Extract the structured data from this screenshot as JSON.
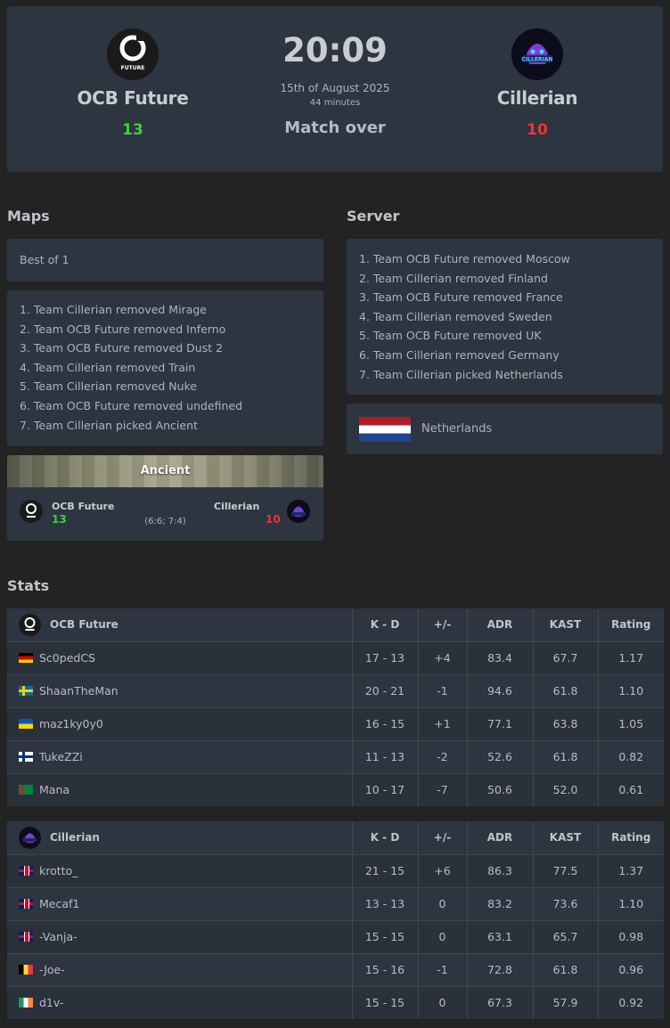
{
  "match": {
    "team1": {
      "name": "OCB Future",
      "score": "13",
      "logo_text": "FUTURE"
    },
    "team2": {
      "name": "Cillerian",
      "score": "10",
      "logo_text": "CILLERIAN"
    },
    "time": "20:09",
    "date": "15th of August 2025",
    "duration": "44 minutes",
    "status": "Match over"
  },
  "maps": {
    "title": "Maps",
    "format": "Best of 1",
    "veto": [
      "1. Team Cillerian removed Mirage",
      "2. Team OCB Future removed Inferno",
      "3. Team OCB Future removed Dust 2",
      "4. Team Cillerian removed Train",
      "5. Team Cillerian removed Nuke",
      "6. Team OCB Future removed undefined",
      "7. Team Cillerian picked Ancient"
    ],
    "played": {
      "name": "Ancient",
      "team1": "OCB Future",
      "team1_score": "13",
      "team2": "Cillerian",
      "team2_score": "10",
      "halves": "(6:6; 7:4)"
    }
  },
  "server": {
    "title": "Server",
    "veto": [
      "1. Team OCB Future removed Moscow",
      "2. Team Cillerian removed Finland",
      "3. Team OCB Future removed France",
      "4. Team Cillerian removed Sweden",
      "5. Team OCB Future removed UK",
      "6. Team Cillerian removed Germany",
      "7. Team Cillerian picked Netherlands"
    ],
    "selected": "Netherlands"
  },
  "stats": {
    "title": "Stats",
    "columns": [
      "K - D",
      "+/-",
      "ADR",
      "KAST",
      "Rating"
    ],
    "team1": {
      "name": "OCB Future",
      "players": [
        {
          "flag": "de",
          "name": "Sc0pedCS",
          "kd": "17 - 13",
          "pm": "+4",
          "adr": "83.4",
          "kast": "67.7",
          "rating": "1.17"
        },
        {
          "flag": "se",
          "name": "ShaanTheMan",
          "kd": "20 - 21",
          "pm": "-1",
          "adr": "94.6",
          "kast": "61.8",
          "rating": "1.10"
        },
        {
          "flag": "ua",
          "name": "maz1ky0y0",
          "kd": "16 - 15",
          "pm": "+1",
          "adr": "77.1",
          "kast": "63.8",
          "rating": "1.05"
        },
        {
          "flag": "fi",
          "name": "TukeZZi",
          "kd": "11 - 13",
          "pm": "-2",
          "adr": "52.6",
          "kast": "61.8",
          "rating": "0.82"
        },
        {
          "flag": "tm",
          "name": "Mana",
          "kd": "10 - 17",
          "pm": "-7",
          "adr": "50.6",
          "kast": "52.0",
          "rating": "0.61"
        }
      ]
    },
    "team2": {
      "name": "Cillerian",
      "players": [
        {
          "flag": "gb",
          "name": "krotto_",
          "kd": "21 - 15",
          "pm": "+6",
          "adr": "86.3",
          "kast": "77.5",
          "rating": "1.37"
        },
        {
          "flag": "gb",
          "name": "Mecaf1",
          "kd": "13 - 13",
          "pm": "0",
          "adr": "83.2",
          "kast": "73.6",
          "rating": "1.10"
        },
        {
          "flag": "gb",
          "name": "-Vanja-",
          "kd": "15 - 15",
          "pm": "0",
          "adr": "63.1",
          "kast": "65.7",
          "rating": "0.98"
        },
        {
          "flag": "be",
          "name": "-Joe-",
          "kd": "15 - 16",
          "pm": "-1",
          "adr": "72.8",
          "kast": "61.8",
          "rating": "0.96"
        },
        {
          "flag": "ie",
          "name": "d1v-",
          "kd": "15 - 15",
          "pm": "0",
          "adr": "67.3",
          "kast": "57.9",
          "rating": "0.92"
        }
      ]
    }
  },
  "colors": {
    "win": "#3fcf3f",
    "lose": "#ef3434",
    "card": "#2d3540",
    "page": "#232323"
  }
}
